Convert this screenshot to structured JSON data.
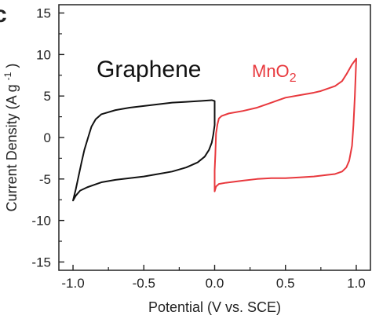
{
  "panel_letter": "c",
  "chart_data": {
    "type": "line",
    "xlabel": "Potential (V vs. SCE)",
    "ylabel_main": "Current Density (A g",
    "ylabel_sup": "-1",
    "ylabel_close": ")",
    "xlim": [
      -1.1,
      1.1
    ],
    "ylim": [
      -16,
      16
    ],
    "x_ticks": [
      -1.0,
      -0.5,
      0.0,
      0.5,
      1.0
    ],
    "x_tick_labels": [
      "-1.0",
      "-0.5",
      "0.0",
      "0.5",
      "1.0"
    ],
    "y_ticks": [
      -15,
      -10,
      -5,
      0,
      5,
      10,
      15
    ],
    "y_tick_labels": [
      "-15",
      "-10",
      "-5",
      "0",
      "5",
      "10",
      "15"
    ],
    "grid": false,
    "series": [
      {
        "name": "Graphene",
        "label_parts": [
          "Graphene"
        ],
        "color": "#111111",
        "points": [
          [
            -1.0,
            -7.6
          ],
          [
            -0.98,
            -7.0
          ],
          [
            -0.95,
            -6.4
          ],
          [
            -0.9,
            -6.0
          ],
          [
            -0.85,
            -5.7
          ],
          [
            -0.8,
            -5.4
          ],
          [
            -0.7,
            -5.1
          ],
          [
            -0.6,
            -4.9
          ],
          [
            -0.5,
            -4.7
          ],
          [
            -0.4,
            -4.4
          ],
          [
            -0.3,
            -4.1
          ],
          [
            -0.2,
            -3.6
          ],
          [
            -0.12,
            -3.0
          ],
          [
            -0.07,
            -2.3
          ],
          [
            -0.04,
            -1.5
          ],
          [
            -0.02,
            -0.6
          ],
          [
            -0.01,
            0.3
          ],
          [
            0.0,
            1.5
          ],
          [
            0.0,
            3.0
          ],
          [
            0.0,
            4.4
          ],
          [
            -0.02,
            4.5
          ],
          [
            -0.1,
            4.4
          ],
          [
            -0.2,
            4.3
          ],
          [
            -0.3,
            4.2
          ],
          [
            -0.4,
            4.0
          ],
          [
            -0.5,
            3.8
          ],
          [
            -0.6,
            3.6
          ],
          [
            -0.7,
            3.3
          ],
          [
            -0.8,
            2.8
          ],
          [
            -0.84,
            2.2
          ],
          [
            -0.87,
            1.3
          ],
          [
            -0.89,
            0.2
          ],
          [
            -0.92,
            -1.5
          ],
          [
            -0.94,
            -3.0
          ],
          [
            -0.96,
            -4.6
          ],
          [
            -0.98,
            -6.2
          ],
          [
            -1.0,
            -7.6
          ]
        ]
      },
      {
        "name": "MnO2",
        "label_parts": [
          "MnO",
          "2"
        ],
        "color": "#e8383d",
        "points": [
          [
            0.0,
            -6.5
          ],
          [
            0.01,
            -5.9
          ],
          [
            0.03,
            -5.6
          ],
          [
            0.08,
            -5.45
          ],
          [
            0.2,
            -5.2
          ],
          [
            0.3,
            -5.0
          ],
          [
            0.4,
            -4.9
          ],
          [
            0.5,
            -4.9
          ],
          [
            0.6,
            -4.8
          ],
          [
            0.7,
            -4.7
          ],
          [
            0.8,
            -4.5
          ],
          [
            0.85,
            -4.4
          ],
          [
            0.9,
            -4.1
          ],
          [
            0.93,
            -3.6
          ],
          [
            0.95,
            -2.8
          ],
          [
            0.97,
            -1.0
          ],
          [
            0.98,
            1.5
          ],
          [
            0.99,
            5.0
          ],
          [
            1.0,
            9.5
          ],
          [
            0.97,
            8.8
          ],
          [
            0.93,
            7.6
          ],
          [
            0.9,
            6.8
          ],
          [
            0.85,
            6.2
          ],
          [
            0.8,
            5.9
          ],
          [
            0.75,
            5.6
          ],
          [
            0.7,
            5.4
          ],
          [
            0.6,
            5.1
          ],
          [
            0.5,
            4.8
          ],
          [
            0.45,
            4.5
          ],
          [
            0.4,
            4.2
          ],
          [
            0.3,
            3.6
          ],
          [
            0.2,
            3.2
          ],
          [
            0.1,
            2.9
          ],
          [
            0.05,
            2.6
          ],
          [
            0.03,
            2.3
          ],
          [
            0.02,
            1.6
          ],
          [
            0.01,
            0.5
          ],
          [
            0.005,
            -2.0
          ],
          [
            0.0,
            -4.0
          ],
          [
            0.0,
            -6.5
          ]
        ]
      }
    ]
  }
}
